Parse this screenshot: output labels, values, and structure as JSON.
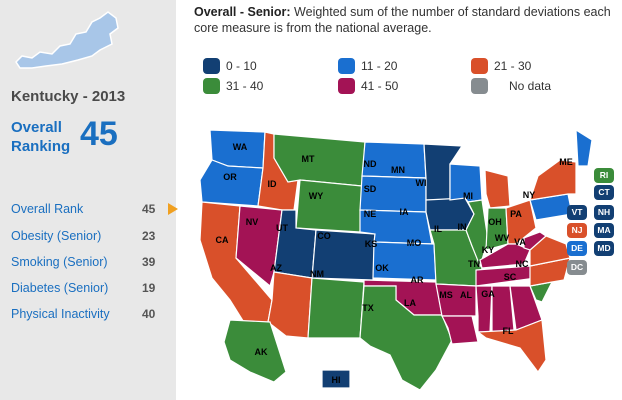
{
  "colors": {
    "c0_10": "#123f73",
    "c11_20": "#1a6fd0",
    "c21_30": "#d9502a",
    "c31_40": "#3b8c3a",
    "c41_50": "#a31355",
    "nodata": "#868c90"
  },
  "sidebar": {
    "state_title": "Kentucky - 2013",
    "overall_label": "Overall Ranking",
    "overall_value": "45",
    "measures": [
      {
        "label": "Overall Rank",
        "value": "45"
      },
      {
        "label": "Obesity (Senior)",
        "value": "23"
      },
      {
        "label": "Smoking (Senior)",
        "value": "39"
      },
      {
        "label": "Diabetes (Senior)",
        "value": "19"
      },
      {
        "label": "Physical Inactivity",
        "value": "40"
      }
    ]
  },
  "description": {
    "title": "Overall - Senior:",
    "text": "Weighted sum of the number of standard deviations each core measure is from the national average."
  },
  "legend": [
    {
      "label": "0 - 10",
      "color_key": "c0_10"
    },
    {
      "label": "11 - 20",
      "color_key": "c11_20"
    },
    {
      "label": "21 - 30",
      "color_key": "c21_30"
    },
    {
      "label": "31 - 40",
      "color_key": "c31_40"
    },
    {
      "label": "41 - 50",
      "color_key": "c41_50"
    },
    {
      "label": "No data",
      "color_key": "nodata"
    }
  ],
  "states": [
    {
      "abbr": "WA",
      "bin": "c11_20"
    },
    {
      "abbr": "OR",
      "bin": "c11_20"
    },
    {
      "abbr": "CA",
      "bin": "c21_30"
    },
    {
      "abbr": "ID",
      "bin": "c21_30"
    },
    {
      "abbr": "NV",
      "bin": "c41_50"
    },
    {
      "abbr": "MT",
      "bin": "c31_40"
    },
    {
      "abbr": "WY",
      "bin": "c31_40"
    },
    {
      "abbr": "UT",
      "bin": "c0_10"
    },
    {
      "abbr": "CO",
      "bin": "c0_10"
    },
    {
      "abbr": "AZ",
      "bin": "c21_30"
    },
    {
      "abbr": "NM",
      "bin": "c31_40"
    },
    {
      "abbr": "ND",
      "bin": "c11_20"
    },
    {
      "abbr": "SD",
      "bin": "c11_20"
    },
    {
      "abbr": "NE",
      "bin": "c11_20"
    },
    {
      "abbr": "KS",
      "bin": "c11_20"
    },
    {
      "abbr": "OK",
      "bin": "c41_50"
    },
    {
      "abbr": "TX",
      "bin": "c31_40"
    },
    {
      "abbr": "MN",
      "bin": "c0_10"
    },
    {
      "abbr": "IA",
      "bin": "c0_10"
    },
    {
      "abbr": "MO",
      "bin": "c31_40"
    },
    {
      "abbr": "AR",
      "bin": "c41_50"
    },
    {
      "abbr": "LA",
      "bin": "c41_50"
    },
    {
      "abbr": "WI",
      "bin": "c11_20"
    },
    {
      "abbr": "IL",
      "bin": "c31_40"
    },
    {
      "abbr": "MI",
      "bin": "c21_30"
    },
    {
      "abbr": "IN",
      "bin": "c31_40"
    },
    {
      "abbr": "OH",
      "bin": "c21_30"
    },
    {
      "abbr": "KY",
      "bin": "c41_50"
    },
    {
      "abbr": "TN",
      "bin": "c41_50"
    },
    {
      "abbr": "MS",
      "bin": "c41_50"
    },
    {
      "abbr": "AL",
      "bin": "c41_50"
    },
    {
      "abbr": "GA",
      "bin": "c41_50"
    },
    {
      "abbr": "FL",
      "bin": "c21_30"
    },
    {
      "abbr": "SC",
      "bin": "c31_40"
    },
    {
      "abbr": "NC",
      "bin": "c21_30"
    },
    {
      "abbr": "VA",
      "bin": "c21_30"
    },
    {
      "abbr": "WV",
      "bin": "c41_50"
    },
    {
      "abbr": "PA",
      "bin": "c11_20"
    },
    {
      "abbr": "NY",
      "bin": "c21_30"
    },
    {
      "abbr": "ME",
      "bin": "c11_20"
    },
    {
      "abbr": "AK",
      "bin": "c31_40"
    },
    {
      "abbr": "HI",
      "bin": "c0_10"
    }
  ],
  "badges": [
    {
      "abbr": "RI",
      "bin": "c31_40"
    },
    {
      "abbr": "CT",
      "bin": "c0_10"
    },
    {
      "abbr": "VT",
      "bin": "c0_10"
    },
    {
      "abbr": "NH",
      "bin": "c0_10"
    },
    {
      "abbr": "NJ",
      "bin": "c21_30"
    },
    {
      "abbr": "MA",
      "bin": "c0_10"
    },
    {
      "abbr": "DE",
      "bin": "c11_20"
    },
    {
      "abbr": "MD",
      "bin": "c0_10"
    },
    {
      "abbr": "DC",
      "bin": "nodata"
    }
  ]
}
